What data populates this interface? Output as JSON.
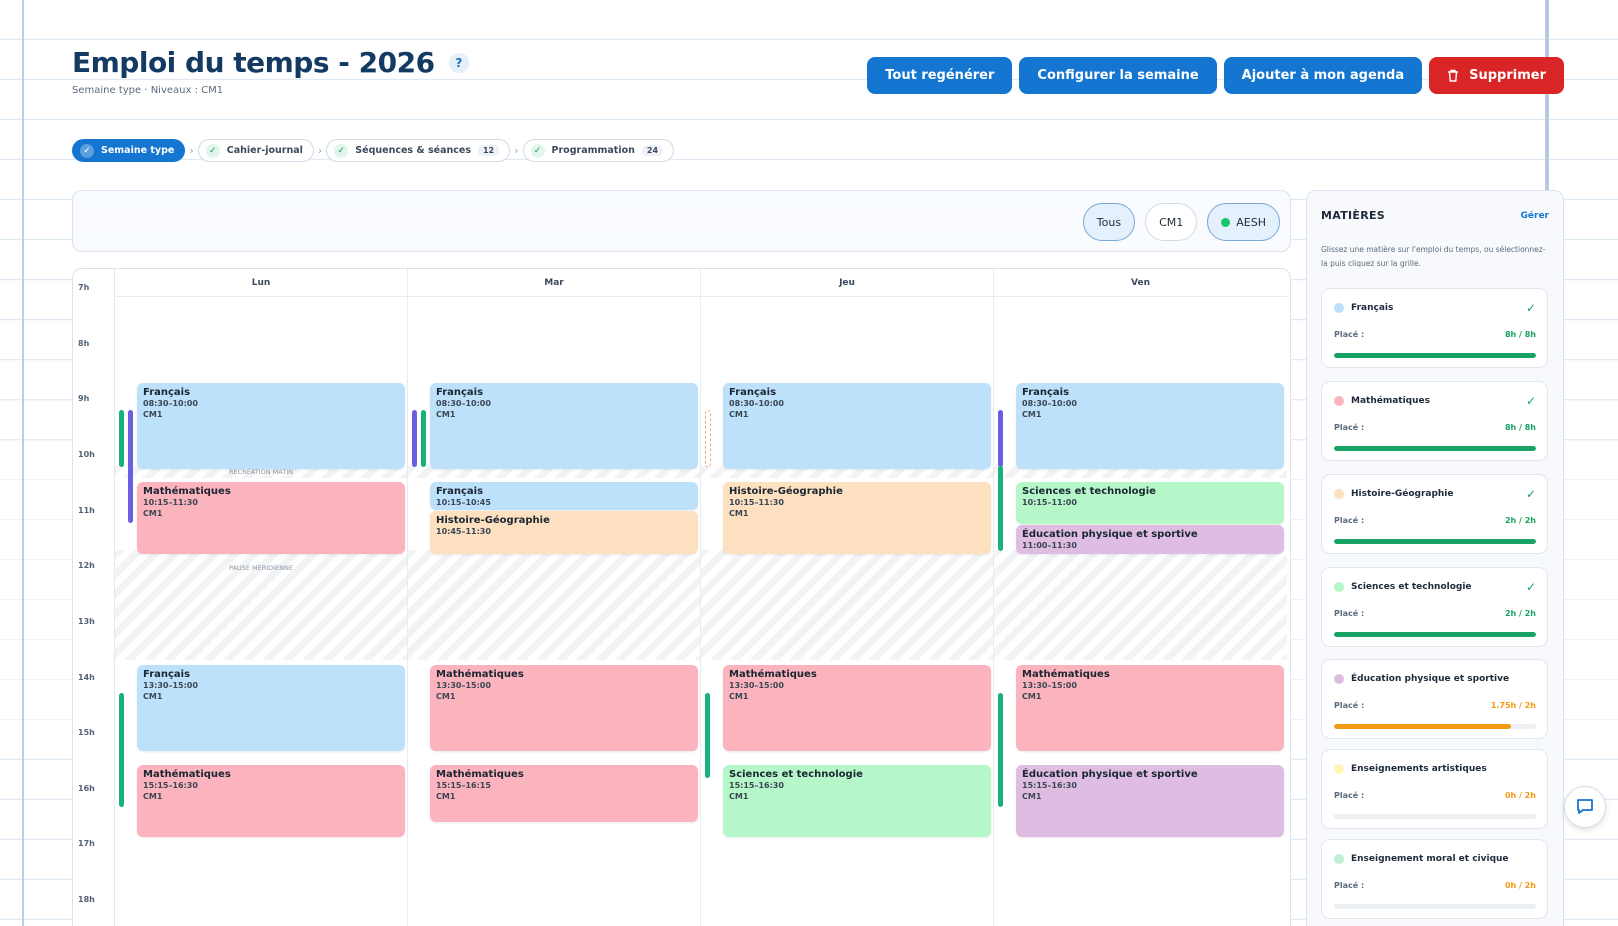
{
  "header": {
    "title": "Emploi du temps - 2026",
    "help": "?",
    "subtitle": "Semaine type · Niveaux : CM1"
  },
  "actions": {
    "regen": "Tout regénérer",
    "config": "Configurer la semaine",
    "agenda": "Ajouter à mon agenda",
    "delete": "Supprimer"
  },
  "steps": [
    {
      "label": "Semaine type",
      "count": ""
    },
    {
      "label": "Cahier-journal",
      "count": ""
    },
    {
      "label": "Séquences & séances",
      "count": "12"
    },
    {
      "label": "Programmation",
      "count": "24"
    }
  ],
  "filters": {
    "all": "Tous",
    "level": "CM1",
    "aesh": "AESH"
  },
  "days": [
    "Lun",
    "Mar",
    "Jeu",
    "Ven"
  ],
  "hours": [
    "7h",
    "8h",
    "9h",
    "10h",
    "11h",
    "12h",
    "13h",
    "14h",
    "15h",
    "16h",
    "17h",
    "18h"
  ],
  "breaks": {
    "morning": "RÉCRÉATION MATIN",
    "lunch": "PAUSE MÉRIDIENNE"
  },
  "events": {
    "lun": [
      {
        "name": "Français",
        "time": "08:30–10:00",
        "cls": "CM1"
      },
      {
        "name": "Mathématiques",
        "time": "10:15–11:30",
        "cls": "CM1"
      },
      {
        "name": "Français",
        "time": "13:30–15:00",
        "cls": "CM1"
      },
      {
        "name": "Mathématiques",
        "time": "15:15–16:30",
        "cls": "CM1"
      }
    ],
    "mar": [
      {
        "name": "Français",
        "time": "08:30–10:00",
        "cls": "CM1"
      },
      {
        "name": "Français",
        "time": "10:15–10:45",
        "cls": ""
      },
      {
        "name": "Histoire-Géographie",
        "time": "10:45–11:30",
        "cls": ""
      },
      {
        "name": "Mathématiques",
        "time": "13:30–15:00",
        "cls": "CM1"
      },
      {
        "name": "Mathématiques",
        "time": "15:15–16:15",
        "cls": "CM1"
      }
    ],
    "jeu": [
      {
        "name": "Français",
        "time": "08:30–10:00",
        "cls": "CM1"
      },
      {
        "name": "Histoire-Géographie",
        "time": "10:15–11:30",
        "cls": "CM1"
      },
      {
        "name": "Mathématiques",
        "time": "13:30–15:00",
        "cls": "CM1"
      },
      {
        "name": "Sciences et technologie",
        "time": "15:15–16:30",
        "cls": "CM1"
      }
    ],
    "ven": [
      {
        "name": "Français",
        "time": "08:30–10:00",
        "cls": "CM1"
      },
      {
        "name": "Sciences et technologie",
        "time": "10:15–11:00",
        "cls": ""
      },
      {
        "name": "Éducation physique et sportive",
        "time": "11:00–11:30",
        "cls": ""
      },
      {
        "name": "Mathématiques",
        "time": "13:30–15:00",
        "cls": "CM1"
      },
      {
        "name": "Éducation physique et sportive",
        "time": "15:15–16:30",
        "cls": "CM1"
      }
    ]
  },
  "panel": {
    "title": "MATIÈRES",
    "manage": "Gérer",
    "hint": "Glissez une matière sur l'emploi du temps, ou sélectionnez-la puis cliquez sur la grille.",
    "placed_label": "Placé :",
    "subjects": [
      {
        "name": "Français",
        "hours": "8h / 8h",
        "done": "✓",
        "progress": 1.0,
        "color": "#bde0fb",
        "status_color": "#17a363"
      },
      {
        "name": "Mathématiques",
        "hours": "8h / 8h",
        "done": "✓",
        "progress": 1.0,
        "color": "#fbb3bd",
        "status_color": "#17a363"
      },
      {
        "name": "Histoire-Géographie",
        "hours": "2h / 2h",
        "done": "✓",
        "progress": 1.0,
        "color": "#fde0bf",
        "status_color": "#17a363"
      },
      {
        "name": "Sciences et technologie",
        "hours": "2h / 2h",
        "done": "✓",
        "progress": 1.0,
        "color": "#b5f7c8",
        "status_color": "#17a363"
      },
      {
        "name": "Éducation physique et sportive",
        "hours": "1.75h / 2h",
        "done": "",
        "progress": 0.875,
        "color": "#dfbde3",
        "status_color": "#f29a13"
      },
      {
        "name": "Enseignements artistiques",
        "hours": "0h / 2h",
        "done": "",
        "progress": 0.0,
        "color": "#fdf6b5",
        "status_color": "#f29a13"
      },
      {
        "name": "Enseignement moral et civique",
        "hours": "0h / 2h",
        "done": "",
        "progress": 0.0,
        "color": "#bff0d7",
        "status_color": "#f29a13"
      }
    ]
  },
  "colors": {
    "primary": "#1476d0",
    "danger": "#d92525",
    "success": "#17a363",
    "warning": "#f29a13"
  }
}
